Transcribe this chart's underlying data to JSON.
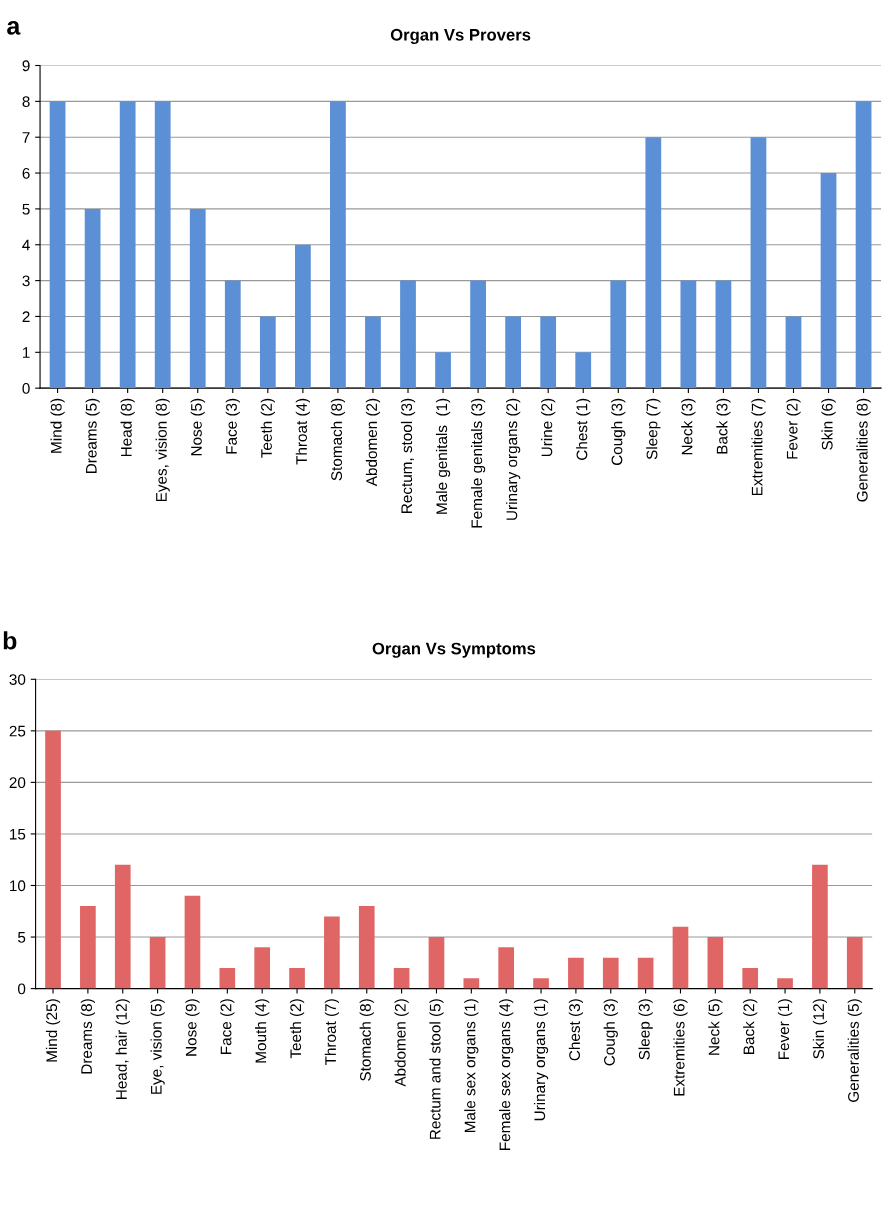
{
  "chart_data": [
    {
      "type": "bar",
      "title": "Organ Vs Provers",
      "annotations": [
        "a"
      ],
      "categories": [
        "Mind (8)",
        "Dreams (5)",
        "Head (8)",
        "Eyes, vision (8)",
        "Nose (5)",
        "Face (3)",
        "Teeth (2)",
        "Throat (4)",
        "Stomach (8)",
        "Abdomen (2)",
        "Rectum, stool (3)",
        "Male genitals  (1)",
        "Female genitals (3)",
        "Urinary organs (2)",
        "Urine (2)",
        "Chest (1)",
        "Cough (3)",
        "Sleep (7)",
        "Neck (3)",
        "Back (3)",
        "Extremities (7)",
        "Fever (2)",
        "Skin (6)",
        "Generalities (8)"
      ],
      "values": [
        8,
        5,
        8,
        8,
        5,
        3,
        2,
        4,
        8,
        2,
        3,
        1,
        3,
        2,
        2,
        1,
        3,
        7,
        3,
        3,
        7,
        2,
        6,
        8
      ],
      "color": "#5b8fd6",
      "ylim": [
        0,
        9
      ],
      "yticks": [
        0,
        1,
        2,
        3,
        4,
        5,
        6,
        7,
        8,
        9
      ],
      "grid": "y"
    },
    {
      "type": "bar",
      "title": "Organ Vs Symptoms",
      "annotations": [
        "b"
      ],
      "categories": [
        "Mind (25)",
        "Dreams (8)",
        "Head, hair (12)",
        "Eye, vision (5)",
        "Nose (9)",
        "Face (2)",
        "Mouth (4)",
        "Teeth (2)",
        "Throat (7)",
        "Stomach (8)",
        "Abdomen (2)",
        "Rectum and stool (5)",
        "Male sex organs (1)",
        "Female sex organs (4)",
        "Urinary organs (1)",
        "Chest (3)",
        "Cough (3)",
        "Sleep (3)",
        "Extremities (6)",
        "Neck (5)",
        "Back (2)",
        "Fever (1)",
        "Skin (12)",
        "Generalities (5)"
      ],
      "values": [
        25,
        8,
        12,
        5,
        9,
        2,
        4,
        2,
        7,
        8,
        2,
        5,
        1,
        4,
        1,
        3,
        3,
        3,
        6,
        5,
        2,
        1,
        12,
        5
      ],
      "color": "#e06666",
      "ylim": [
        0,
        30
      ],
      "yticks": [
        0,
        5,
        10,
        15,
        20,
        25,
        30
      ],
      "grid": "y"
    }
  ]
}
